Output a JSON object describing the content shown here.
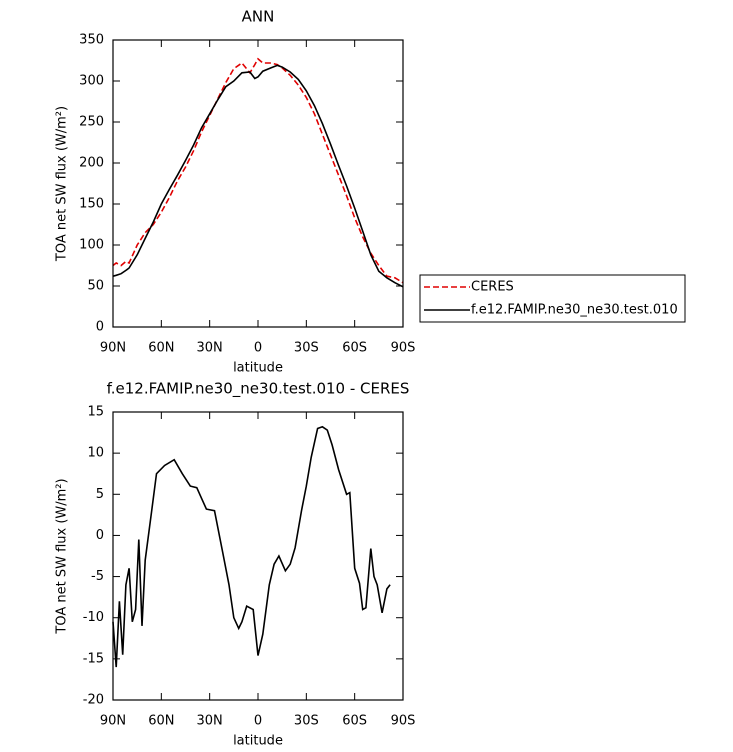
{
  "chart_data": [
    {
      "type": "line",
      "title": "ANN",
      "xlabel": "latitude",
      "ylabel": "TOA net SW flux (W/m²)",
      "xlim": [
        90,
        -90
      ],
      "xticks": [
        {
          "value": 90,
          "label": "90N"
        },
        {
          "value": 60,
          "label": "60N"
        },
        {
          "value": 30,
          "label": "30N"
        },
        0,
        {
          "value": -30,
          "label": "30S"
        },
        {
          "value": -60,
          "label": "60S"
        },
        {
          "value": -90,
          "label": "90S"
        }
      ],
      "ylim": [
        0,
        350
      ],
      "yticks": [
        0,
        50,
        100,
        150,
        200,
        250,
        300,
        350
      ],
      "legend": "right",
      "x": [
        90,
        88,
        85,
        82,
        80,
        75,
        70,
        65,
        60,
        55,
        50,
        45,
        40,
        35,
        30,
        25,
        20,
        15,
        10,
        5,
        2,
        0,
        -3,
        -8,
        -12,
        -15,
        -20,
        -25,
        -30,
        -35,
        -40,
        -45,
        -50,
        -55,
        -60,
        -65,
        -70,
        -75,
        -80,
        -85,
        -90
      ],
      "series": [
        {
          "name": "CERES",
          "color": "#e00000",
          "dashed": true,
          "values": [
            75,
            78,
            75,
            80,
            78,
            100,
            115,
            125,
            140,
            158,
            178,
            195,
            215,
            238,
            258,
            278,
            298,
            315,
            322,
            310,
            320,
            327,
            322,
            322,
            320,
            316,
            307,
            295,
            280,
            260,
            235,
            210,
            185,
            160,
            133,
            110,
            90,
            75,
            62,
            60,
            54
          ]
        },
        {
          "name": "f.e12.FAMIP.ne30_ne30.test.010",
          "color": "#000000",
          "dashed": false,
          "values": [
            62,
            63,
            65,
            69,
            72,
            88,
            108,
            128,
            150,
            168,
            185,
            203,
            222,
            243,
            260,
            277,
            293,
            300,
            310,
            311,
            303,
            305,
            312,
            316,
            319,
            317,
            311,
            302,
            288,
            270,
            248,
            223,
            197,
            172,
            145,
            117,
            88,
            68,
            60,
            54,
            49
          ]
        }
      ]
    },
    {
      "type": "line",
      "title": "f.e12.FAMIP.ne30_ne30.test.010 - CERES",
      "xlabel": "latitude",
      "ylabel": "TOA net SW flux (W/m²)",
      "xlim": [
        90,
        -90
      ],
      "xticks": [
        {
          "value": 90,
          "label": "90N"
        },
        {
          "value": 60,
          "label": "60N"
        },
        {
          "value": 30,
          "label": "30N"
        },
        0,
        {
          "value": -30,
          "label": "30S"
        },
        {
          "value": -60,
          "label": "60S"
        },
        {
          "value": -90,
          "label": "90S"
        }
      ],
      "ylim": [
        -20,
        15
      ],
      "yticks": [
        -20,
        -15,
        -10,
        -5,
        0,
        5,
        10,
        15
      ],
      "x": [
        90,
        88,
        86,
        84,
        82,
        80,
        78,
        76,
        74,
        72,
        70,
        66,
        63,
        58,
        52,
        47,
        42,
        38,
        35,
        32,
        27,
        22,
        18,
        15,
        12,
        10,
        7,
        3,
        0,
        -3,
        -7,
        -10,
        -13,
        -17,
        -20,
        -23,
        -27,
        -30,
        -33,
        -37,
        -40,
        -43,
        -46,
        -50,
        -55,
        -57,
        -60,
        -63,
        -65,
        -67,
        -70,
        -72,
        -74,
        -77,
        -80,
        -82
      ],
      "series": [
        {
          "color": "#000000",
          "dashed": false,
          "values": [
            -10.5,
            -16,
            -8,
            -14.5,
            -6,
            -4,
            -10.5,
            -9,
            -0.5,
            -11,
            -3,
            3,
            7.5,
            8.5,
            9.2,
            7.5,
            6,
            5.8,
            4.5,
            3.2,
            3,
            -2,
            -6,
            -10,
            -11.3,
            -10.5,
            -8.6,
            -9,
            -14.6,
            -12,
            -6,
            -3.5,
            -2.5,
            -4.3,
            -3.5,
            -1.5,
            3,
            6,
            9.5,
            13,
            13.2,
            12.8,
            11,
            8,
            5,
            5.2,
            -4,
            -5.8,
            -9,
            -8.8,
            -1.6,
            -5,
            -6,
            -9.4,
            -6.5,
            -6
          ]
        }
      ]
    }
  ]
}
